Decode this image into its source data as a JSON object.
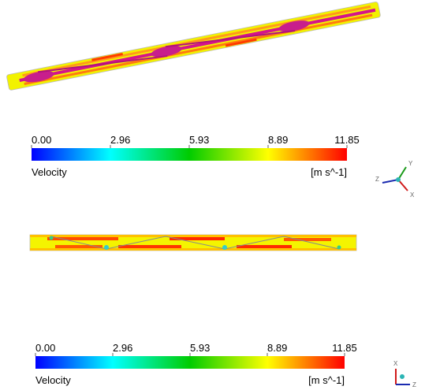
{
  "legends": [
    {
      "ticks": [
        "0.00",
        "2.96",
        "5.93",
        "8.89",
        "11.85"
      ],
      "variable": "Velocity",
      "unit": "[m s^-1]"
    },
    {
      "ticks": [
        "0.00",
        "2.96",
        "5.93",
        "8.89",
        "11.85"
      ],
      "variable": "Velocity",
      "unit": "[m s^-1]"
    }
  ],
  "triads": [
    {
      "labels": [
        "Y",
        "X",
        "Z"
      ]
    },
    {
      "labels": [
        "X",
        "Z"
      ]
    }
  ]
}
